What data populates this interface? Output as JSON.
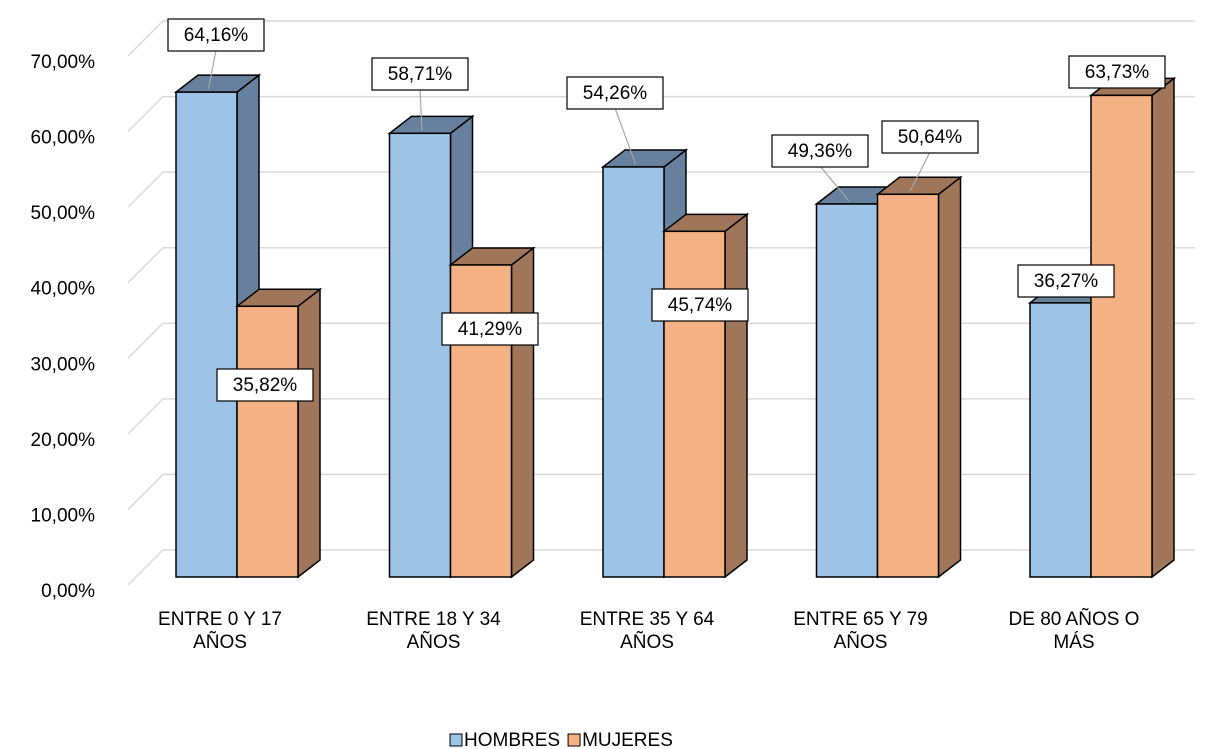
{
  "chart_data": {
    "type": "bar3d",
    "categories": [
      [
        "ENTRE 0 Y 17",
        "AÑOS"
      ],
      [
        "ENTRE 18 Y 34",
        "AÑOS"
      ],
      [
        "ENTRE 35 Y 64",
        "AÑOS"
      ],
      [
        "ENTRE 65 Y 79",
        "AÑOS"
      ],
      [
        "DE 80 AÑOS O",
        "MÁS"
      ]
    ],
    "series": [
      {
        "name": "HOMBRES",
        "color": "#9dc3e6",
        "side_color": "#66809e",
        "values": [
          64.16,
          58.71,
          54.26,
          49.36,
          36.27
        ],
        "value_labels": [
          "64,16%",
          "58,71%",
          "54,26%",
          "49,36%",
          "36,27%"
        ]
      },
      {
        "name": "MUJERES",
        "color": "#f4b183",
        "side_color": "#a0765a",
        "values": [
          35.82,
          41.29,
          45.74,
          50.64,
          63.73
        ],
        "value_labels": [
          "35,82%",
          "41,29%",
          "45,74%",
          "50,64%",
          "63,73%"
        ]
      }
    ],
    "ylim": [
      0,
      70
    ],
    "yticks": [
      {
        "value": 0,
        "label": "0,00%"
      },
      {
        "value": 10,
        "label": "10,00%"
      },
      {
        "value": 20,
        "label": "20,00%"
      },
      {
        "value": 30,
        "label": "30,00%"
      },
      {
        "value": 40,
        "label": "40,00%"
      },
      {
        "value": 50,
        "label": "50,00%"
      },
      {
        "value": 60,
        "label": "60,00%"
      },
      {
        "value": 70,
        "label": "70,00%"
      }
    ],
    "grid": true,
    "legend": "bottom"
  }
}
